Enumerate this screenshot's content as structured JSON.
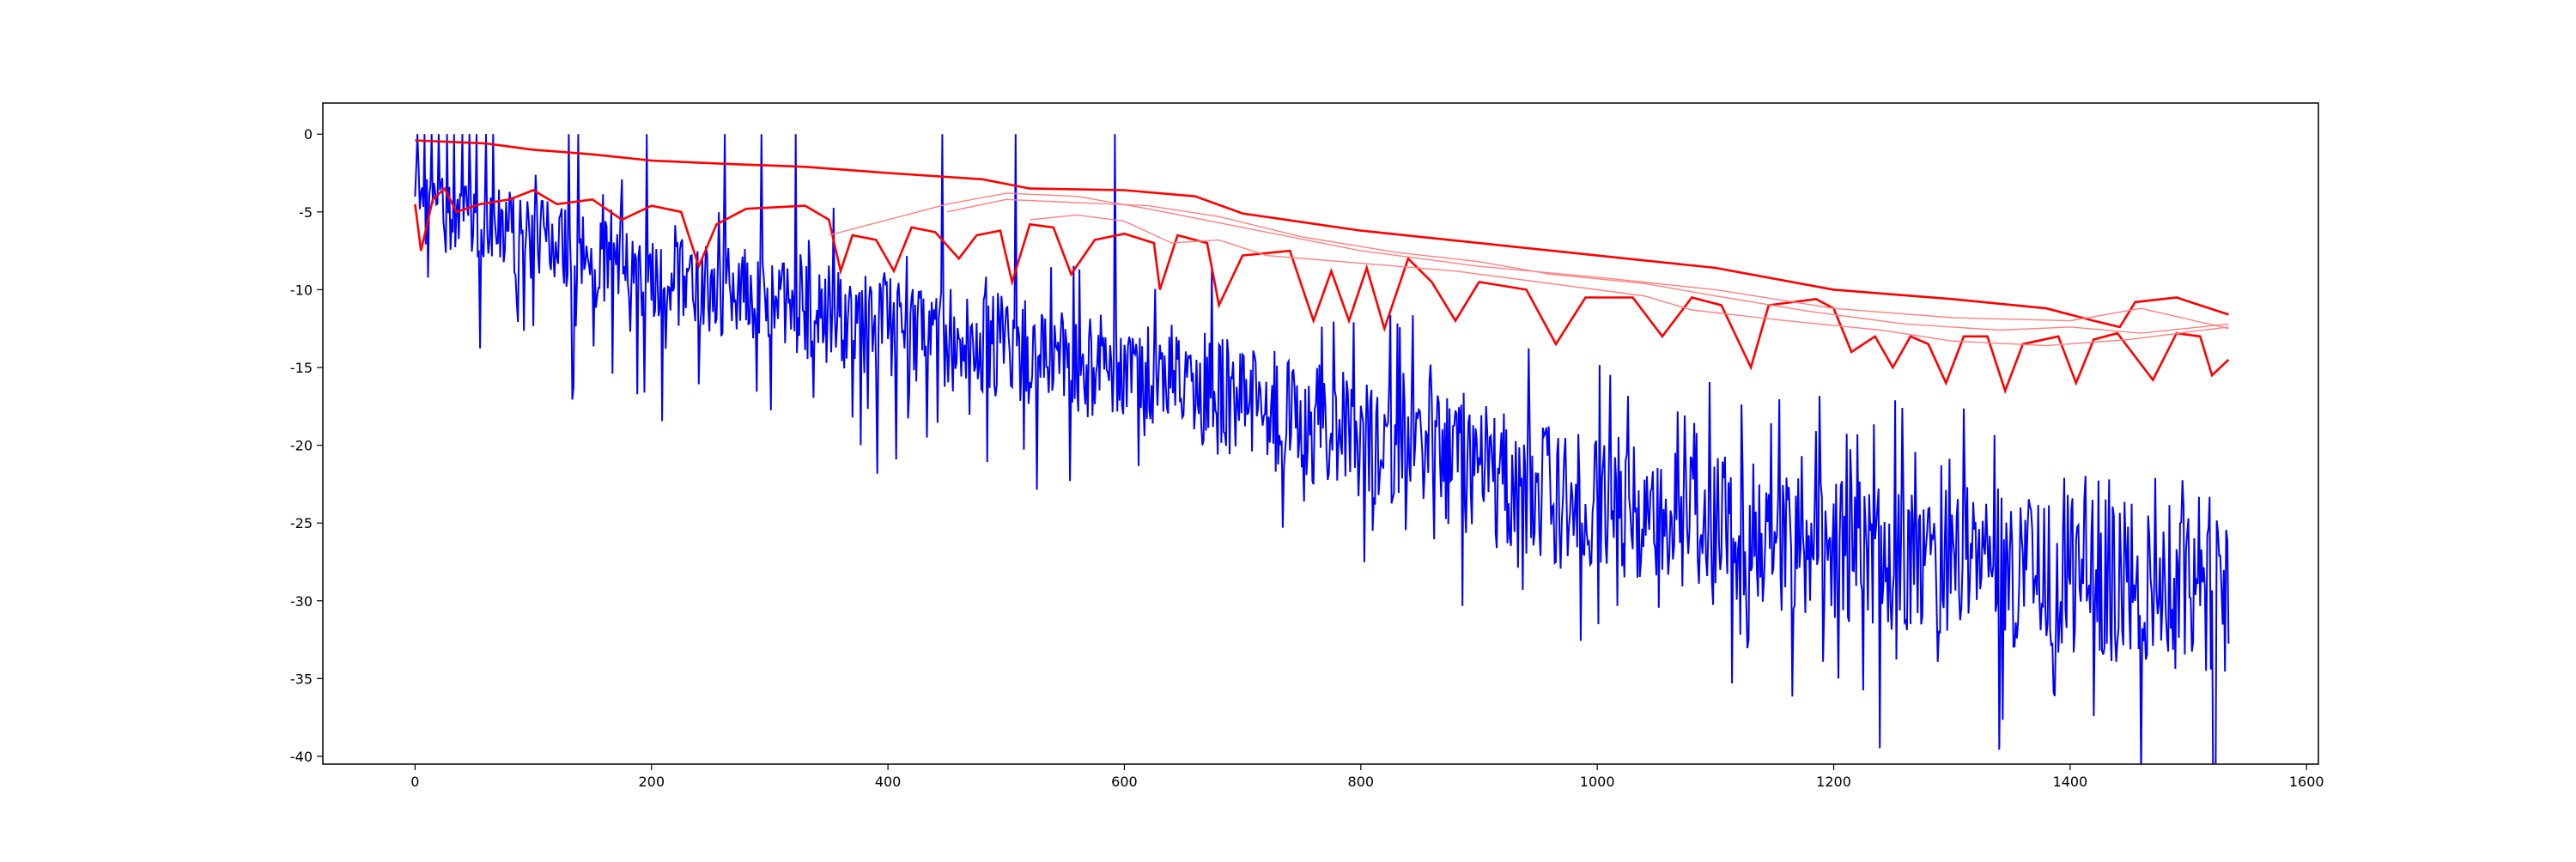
{
  "chart_data": {
    "type": "line",
    "title": "",
    "xlabel": "",
    "ylabel": "",
    "xlim": [
      -78,
      1610
    ],
    "ylim": [
      -40.5,
      2.0
    ],
    "xticks": [
      0,
      200,
      400,
      600,
      800,
      1000,
      1200,
      1400,
      1600
    ],
    "yticks": [
      0,
      -5,
      -10,
      -15,
      -20,
      -25,
      -30,
      -35,
      -40
    ],
    "grid": false,
    "legend": "none",
    "colors": {
      "blue": "#0000ff",
      "red": "#ff0000",
      "light_red": "#ff8080"
    },
    "series": [
      {
        "style": "blue-noisy",
        "x_start": 0,
        "x_end": 1534,
        "points": 1535,
        "seed": 7,
        "trend": [
          [
            0,
            -4.5
          ],
          [
            200,
            -9.0
          ],
          [
            400,
            -12.5
          ],
          [
            600,
            -15.0
          ],
          [
            800,
            -19.5
          ],
          [
            1000,
            -24.0
          ],
          [
            1200,
            -26.5
          ],
          [
            1400,
            -28.5
          ],
          [
            1534,
            -29.5
          ]
        ],
        "spikes_to_zero_x": [
          2,
          8,
          14,
          20,
          27,
          33,
          40,
          46,
          52,
          60,
          66,
          130,
          138,
          196,
          262,
          293,
          322,
          446,
          508,
          592
        ]
      },
      {
        "style": "red-top-envelope",
        "points": [
          [
            0,
            -0.4
          ],
          [
            30,
            -0.5
          ],
          [
            60,
            -0.6
          ],
          [
            100,
            -1.0
          ],
          [
            150,
            -1.3
          ],
          [
            200,
            -1.7
          ],
          [
            260,
            -1.9
          ],
          [
            330,
            -2.1
          ],
          [
            400,
            -2.5
          ],
          [
            480,
            -2.9
          ],
          [
            520,
            -3.5
          ],
          [
            600,
            -3.6
          ],
          [
            660,
            -4.0
          ],
          [
            700,
            -5.1
          ],
          [
            800,
            -6.2
          ],
          [
            900,
            -7.0
          ],
          [
            1000,
            -7.8
          ],
          [
            1100,
            -8.6
          ],
          [
            1200,
            -10.0
          ],
          [
            1300,
            -10.6
          ],
          [
            1380,
            -11.2
          ],
          [
            1420,
            -12.0
          ],
          [
            1442,
            -12.4
          ],
          [
            1455,
            -10.8
          ],
          [
            1490,
            -10.5
          ],
          [
            1534,
            -11.6
          ]
        ]
      },
      {
        "style": "red-bottom-lobes",
        "points": [
          [
            0,
            -4.5
          ],
          [
            5,
            -7.5
          ],
          [
            15,
            -4.2
          ],
          [
            25,
            -3.5
          ],
          [
            35,
            -5.0
          ],
          [
            55,
            -4.5
          ],
          [
            80,
            -4.2
          ],
          [
            100,
            -3.6
          ],
          [
            120,
            -4.5
          ],
          [
            150,
            -4.2
          ],
          [
            175,
            -5.5
          ],
          [
            200,
            -4.6
          ],
          [
            225,
            -5.0
          ],
          [
            240,
            -8.5
          ],
          [
            255,
            -5.8
          ],
          [
            280,
            -4.8
          ],
          [
            330,
            -4.6
          ],
          [
            350,
            -5.5
          ],
          [
            360,
            -8.8
          ],
          [
            370,
            -6.5
          ],
          [
            390,
            -6.8
          ],
          [
            405,
            -8.8
          ],
          [
            420,
            -6.0
          ],
          [
            440,
            -6.3
          ],
          [
            460,
            -8.0
          ],
          [
            475,
            -6.5
          ],
          [
            495,
            -6.2
          ],
          [
            505,
            -9.5
          ],
          [
            520,
            -5.8
          ],
          [
            540,
            -6.0
          ],
          [
            555,
            -9.0
          ],
          [
            575,
            -6.8
          ],
          [
            600,
            -6.4
          ],
          [
            625,
            -7.0
          ],
          [
            630,
            -10.0
          ],
          [
            645,
            -6.5
          ],
          [
            670,
            -7.0
          ],
          [
            680,
            -11.0
          ],
          [
            700,
            -7.8
          ],
          [
            740,
            -7.5
          ],
          [
            760,
            -12.0
          ],
          [
            775,
            -8.8
          ],
          [
            790,
            -12.0
          ],
          [
            805,
            -8.6
          ],
          [
            820,
            -12.5
          ],
          [
            840,
            -8.0
          ],
          [
            860,
            -9.5
          ],
          [
            880,
            -12.0
          ],
          [
            900,
            -9.5
          ],
          [
            940,
            -10.0
          ],
          [
            965,
            -13.5
          ],
          [
            990,
            -10.5
          ],
          [
            1030,
            -10.5
          ],
          [
            1055,
            -13.0
          ],
          [
            1080,
            -10.5
          ],
          [
            1105,
            -11.0
          ],
          [
            1130,
            -15.0
          ],
          [
            1145,
            -11.0
          ],
          [
            1185,
            -10.6
          ],
          [
            1200,
            -11.2
          ],
          [
            1215,
            -14.0
          ],
          [
            1235,
            -13.0
          ],
          [
            1250,
            -15.0
          ],
          [
            1265,
            -13.0
          ],
          [
            1280,
            -13.5
          ],
          [
            1295,
            -16.0
          ],
          [
            1310,
            -13.0
          ],
          [
            1330,
            -13.0
          ],
          [
            1345,
            -16.5
          ],
          [
            1360,
            -13.5
          ],
          [
            1390,
            -13.0
          ],
          [
            1405,
            -16.0
          ],
          [
            1420,
            -13.2
          ],
          [
            1440,
            -12.8
          ],
          [
            1470,
            -15.8
          ],
          [
            1490,
            -12.8
          ],
          [
            1510,
            -13.0
          ],
          [
            1520,
            -15.5
          ],
          [
            1534,
            -14.5
          ]
        ]
      },
      {
        "style": "light-red-a",
        "points": [
          [
            350,
            -6.5
          ],
          [
            400,
            -5.5
          ],
          [
            450,
            -4.5
          ],
          [
            500,
            -3.8
          ],
          [
            560,
            -4.0
          ],
          [
            620,
            -4.8
          ],
          [
            700,
            -6.0
          ],
          [
            800,
            -7.5
          ],
          [
            900,
            -8.5
          ],
          [
            1000,
            -9.2
          ],
          [
            1100,
            -10.0
          ],
          [
            1200,
            -11.2
          ],
          [
            1300,
            -11.8
          ],
          [
            1400,
            -12.0
          ],
          [
            1460,
            -11.2
          ],
          [
            1534,
            -12.5
          ]
        ]
      },
      {
        "style": "light-red-b",
        "points": [
          [
            450,
            -5.0
          ],
          [
            500,
            -4.2
          ],
          [
            560,
            -4.4
          ],
          [
            620,
            -4.6
          ],
          [
            680,
            -5.3
          ],
          [
            750,
            -6.6
          ],
          [
            830,
            -7.6
          ],
          [
            900,
            -8.2
          ],
          [
            960,
            -9.0
          ],
          [
            1040,
            -9.6
          ],
          [
            1100,
            -10.4
          ],
          [
            1180,
            -11.4
          ],
          [
            1260,
            -12.2
          ],
          [
            1340,
            -12.6
          ],
          [
            1400,
            -12.4
          ],
          [
            1460,
            -12.8
          ],
          [
            1534,
            -12.2
          ]
        ]
      },
      {
        "style": "light-red-c",
        "points": [
          [
            520,
            -5.5
          ],
          [
            560,
            -5.2
          ],
          [
            600,
            -5.6
          ],
          [
            640,
            -7.0
          ],
          [
            680,
            -6.8
          ],
          [
            720,
            -7.8
          ],
          [
            800,
            -8.3
          ],
          [
            880,
            -8.8
          ],
          [
            960,
            -9.6
          ],
          [
            1040,
            -10.4
          ],
          [
            1080,
            -11.3
          ],
          [
            1160,
            -12.0
          ],
          [
            1240,
            -12.6
          ],
          [
            1300,
            -13.3
          ],
          [
            1380,
            -13.6
          ],
          [
            1450,
            -13.2
          ],
          [
            1534,
            -12.4
          ]
        ]
      }
    ]
  }
}
